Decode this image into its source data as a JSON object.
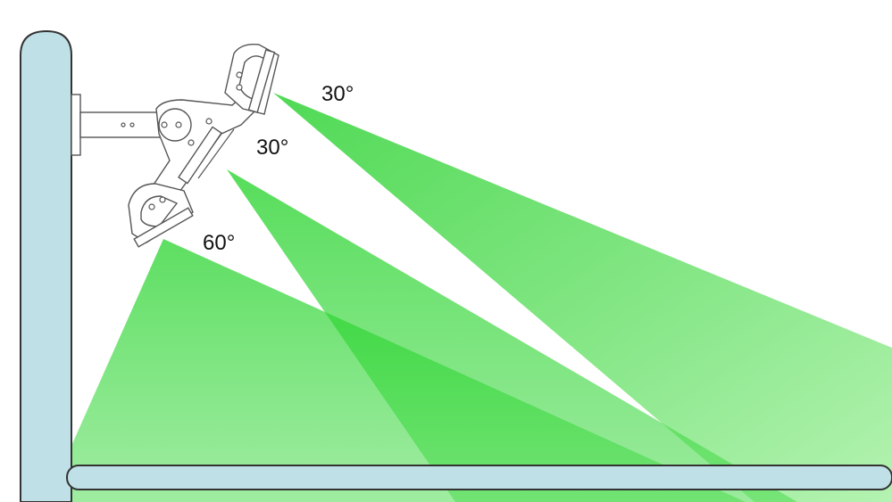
{
  "diagram": {
    "beams": [
      {
        "id": "upper",
        "label": "30°"
      },
      {
        "id": "middle",
        "label": "30°"
      },
      {
        "id": "lower",
        "label": "60°"
      }
    ],
    "colors": {
      "beam_dark": "#1fcf25",
      "beam_light": "#8be88c",
      "pole_fill": "#bfe0e6",
      "pole_stroke": "#333333",
      "fixture_stroke": "#555555"
    }
  }
}
